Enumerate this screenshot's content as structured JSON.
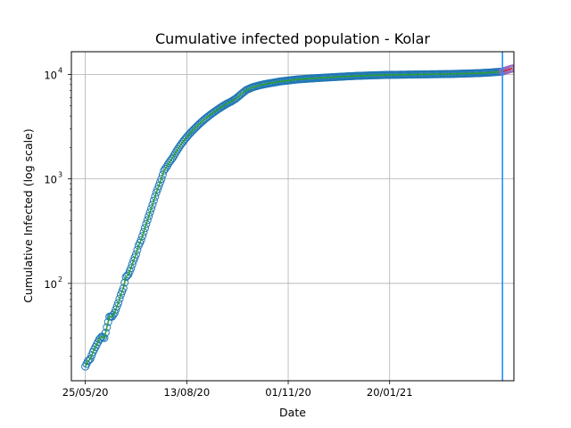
{
  "chart_data": {
    "type": "scatter",
    "title": "Cumulative infected population - Kolar",
    "xlabel": "Date",
    "ylabel": "Cumulative Infected (log scale)",
    "y_scale": "log",
    "grid": true,
    "x_ticks": [
      {
        "date": "2020-05-25",
        "label": "25/05/20"
      },
      {
        "date": "2020-08-13",
        "label": "13/08/20"
      },
      {
        "date": "2020-11-01",
        "label": "01/11/20"
      },
      {
        "date": "2021-01-20",
        "label": "20/01/21"
      }
    ],
    "y_ticks": [
      {
        "value": 100,
        "base": "10",
        "exp": "2"
      },
      {
        "value": 1000,
        "base": "10",
        "exp": "3"
      },
      {
        "value": 10000,
        "base": "10",
        "exp": "4"
      }
    ],
    "xlim": [
      "2020-05-14",
      "2021-04-28"
    ],
    "ylim": [
      11.7,
      16500
    ],
    "vline_date": "2021-04-19",
    "colors": {
      "observed_marker": "#1f77b4",
      "fit_line": "#2ca02c",
      "forecast_marker": "#9467bd",
      "forecast_line": "#d62728",
      "vline": "#1e90ff",
      "grid": "#b0b0b0"
    },
    "series": [
      {
        "kind": "observed",
        "points": [
          [
            "2020-05-25",
            16
          ],
          [
            "2020-05-27",
            18
          ],
          [
            "2020-05-29",
            19
          ],
          [
            "2020-05-31",
            22
          ],
          [
            "2020-06-03",
            26
          ],
          [
            "2020-06-05",
            29
          ],
          [
            "2020-06-07",
            31
          ],
          [
            "2020-06-09",
            30
          ],
          [
            "2020-06-11",
            38
          ],
          [
            "2020-06-13",
            48
          ],
          [
            "2020-06-15",
            48
          ],
          [
            "2020-06-17",
            52
          ],
          [
            "2020-06-20",
            65
          ],
          [
            "2020-06-22",
            78
          ],
          [
            "2020-06-24",
            90
          ],
          [
            "2020-06-26",
            115
          ],
          [
            "2020-06-28",
            122
          ],
          [
            "2020-06-30",
            140
          ],
          [
            "2020-07-02",
            165
          ],
          [
            "2020-07-04",
            190
          ],
          [
            "2020-07-06",
            230
          ],
          [
            "2020-07-08",
            260
          ],
          [
            "2020-07-10",
            310
          ],
          [
            "2020-07-12",
            370
          ],
          [
            "2020-07-14",
            440
          ],
          [
            "2020-07-16",
            520
          ],
          [
            "2020-07-18",
            620
          ],
          [
            "2020-07-20",
            740
          ],
          [
            "2020-07-22",
            860
          ],
          [
            "2020-07-24",
            1000
          ],
          [
            "2020-07-26",
            1200
          ],
          [
            "2020-07-28",
            1300
          ],
          [
            "2020-07-30",
            1430
          ],
          [
            "2020-08-02",
            1600
          ],
          [
            "2020-08-05",
            1850
          ],
          [
            "2020-08-08",
            2100
          ],
          [
            "2020-08-11",
            2350
          ],
          [
            "2020-08-14",
            2600
          ],
          [
            "2020-08-17",
            2850
          ],
          [
            "2020-08-20",
            3100
          ],
          [
            "2020-08-24",
            3450
          ],
          [
            "2020-08-28",
            3800
          ],
          [
            "2020-09-01",
            4150
          ],
          [
            "2020-09-05",
            4500
          ],
          [
            "2020-09-09",
            4850
          ],
          [
            "2020-09-13",
            5200
          ],
          [
            "2020-09-17",
            5500
          ],
          [
            "2020-09-21",
            5900
          ],
          [
            "2020-09-25",
            6500
          ],
          [
            "2020-09-29",
            7100
          ],
          [
            "2020-10-04",
            7550
          ],
          [
            "2020-10-09",
            7850
          ],
          [
            "2020-10-14",
            8100
          ],
          [
            "2020-10-19",
            8300
          ],
          [
            "2020-10-25",
            8550
          ],
          [
            "2020-11-01",
            8750
          ],
          [
            "2020-11-08",
            8950
          ],
          [
            "2020-11-16",
            9100
          ],
          [
            "2020-11-25",
            9250
          ],
          [
            "2020-12-05",
            9400
          ],
          [
            "2020-12-15",
            9550
          ],
          [
            "2020-12-26",
            9700
          ],
          [
            "2021-01-06",
            9800
          ],
          [
            "2021-01-18",
            9900
          ],
          [
            "2021-01-31",
            9950
          ],
          [
            "2021-02-12",
            10000
          ],
          [
            "2021-02-25",
            10050
          ],
          [
            "2021-03-09",
            10100
          ],
          [
            "2021-03-21",
            10200
          ],
          [
            "2021-04-01",
            10300
          ],
          [
            "2021-04-10",
            10450
          ],
          [
            "2021-04-19",
            10650
          ]
        ]
      },
      {
        "kind": "forecast",
        "points": [
          [
            "2021-04-19",
            10650
          ],
          [
            "2021-04-20",
            10750
          ],
          [
            "2021-04-21",
            10850
          ],
          [
            "2021-04-22",
            10950
          ],
          [
            "2021-04-23",
            11050
          ],
          [
            "2021-04-24",
            11150
          ],
          [
            "2021-04-25",
            11250
          ],
          [
            "2021-04-27",
            11400
          ]
        ]
      }
    ]
  }
}
